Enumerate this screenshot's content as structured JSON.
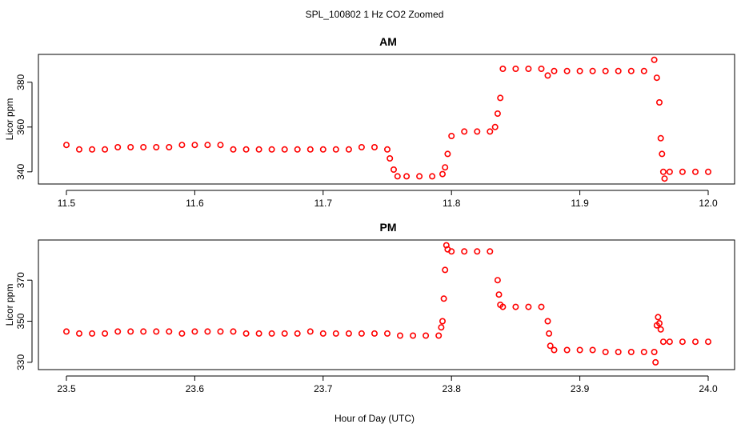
{
  "figure": {
    "title": "SPL_100802  1 Hz CO2 Zoomed",
    "xlabel": "Hour of Day (UTC)"
  },
  "chart_data": [
    {
      "type": "scatter",
      "title": "AM",
      "xlabel": "",
      "ylabel": "Licor ppm",
      "xlim": [
        11.5,
        12.0
      ],
      "ylim": [
        336,
        391
      ],
      "xticks": [
        11.5,
        11.6,
        11.7,
        11.8,
        11.9,
        12.0
      ],
      "xtick_labels": [
        "11.5",
        "11.6",
        "11.7",
        "11.8",
        "11.9",
        "12.0"
      ],
      "yticks": [
        340,
        360,
        380
      ],
      "ytick_labels": [
        "340",
        "360",
        "380"
      ],
      "grid": false,
      "marker_color": "#ff0000",
      "series": [
        {
          "x": [
            11.5,
            11.51,
            11.52,
            11.53,
            11.54,
            11.55,
            11.56,
            11.57,
            11.58,
            11.59,
            11.6,
            11.61,
            11.62,
            11.63,
            11.64,
            11.65,
            11.66,
            11.67,
            11.68,
            11.69,
            11.7,
            11.71,
            11.72,
            11.73,
            11.74,
            11.75,
            11.752,
            11.755,
            11.758,
            11.765,
            11.775,
            11.785,
            11.793,
            11.795,
            11.797,
            11.8,
            11.81,
            11.82,
            11.83,
            11.834,
            11.836,
            11.838,
            11.84,
            11.85,
            11.86,
            11.87,
            11.875,
            11.88,
            11.89,
            11.9,
            11.91,
            11.92,
            11.93,
            11.94,
            11.95,
            11.958,
            11.96,
            11.962,
            11.963,
            11.964,
            11.965,
            11.966,
            11.97,
            11.98,
            11.99,
            12.0
          ],
          "y": [
            352,
            350,
            350,
            350,
            351,
            351,
            351,
            351,
            351,
            352,
            352,
            352,
            352,
            350,
            350,
            350,
            350,
            350,
            350,
            350,
            350,
            350,
            350,
            351,
            351,
            350,
            346,
            341,
            338,
            338,
            338,
            338,
            339,
            342,
            348,
            356,
            358,
            358,
            358,
            360,
            366,
            373,
            386,
            386,
            386,
            386,
            383,
            385,
            385,
            385,
            385,
            385,
            385,
            385,
            385,
            390,
            382,
            371,
            355,
            348,
            340,
            337,
            340,
            340,
            340,
            340
          ]
        }
      ]
    },
    {
      "type": "scatter",
      "title": "PM",
      "xlabel": "Hour of Day (UTC)",
      "ylabel": "Licor ppm",
      "xlim": [
        23.5,
        24.0
      ],
      "ylim": [
        328,
        388
      ],
      "xticks": [
        23.5,
        23.6,
        23.7,
        23.8,
        23.9,
        24.0
      ],
      "xtick_labels": [
        "23.5",
        "23.6",
        "23.7",
        "23.8",
        "23.9",
        "24.0"
      ],
      "yticks": [
        330,
        350,
        370
      ],
      "ytick_labels": [
        "330",
        "350",
        "370"
      ],
      "grid": false,
      "marker_color": "#ff0000",
      "series": [
        {
          "x": [
            23.5,
            23.51,
            23.52,
            23.53,
            23.54,
            23.55,
            23.56,
            23.57,
            23.58,
            23.59,
            23.6,
            23.61,
            23.62,
            23.63,
            23.64,
            23.65,
            23.66,
            23.67,
            23.68,
            23.69,
            23.7,
            23.71,
            23.72,
            23.73,
            23.74,
            23.75,
            23.76,
            23.77,
            23.78,
            23.79,
            23.792,
            23.793,
            23.794,
            23.795,
            23.796,
            23.797,
            23.8,
            23.81,
            23.82,
            23.83,
            23.836,
            23.837,
            23.838,
            23.84,
            23.85,
            23.86,
            23.87,
            23.875,
            23.876,
            23.877,
            23.88,
            23.89,
            23.9,
            23.91,
            23.92,
            23.93,
            23.94,
            23.95,
            23.958,
            23.959,
            23.96,
            23.961,
            23.962,
            23.963,
            23.965,
            23.97,
            23.98,
            23.99,
            24.0
          ],
          "y": [
            345,
            344,
            344,
            344,
            345,
            345,
            345,
            345,
            345,
            344,
            345,
            345,
            345,
            345,
            344,
            344,
            344,
            344,
            344,
            345,
            344,
            344,
            344,
            344,
            344,
            344,
            343,
            343,
            343,
            343,
            347,
            350,
            361,
            375,
            387,
            385,
            384,
            384,
            384,
            384,
            370,
            363,
            358,
            357,
            357,
            357,
            357,
            350,
            344,
            338,
            336,
            336,
            336,
            336,
            335,
            335,
            335,
            335,
            335,
            330,
            348,
            352,
            349,
            346,
            340,
            340,
            340,
            340,
            340
          ]
        }
      ]
    }
  ]
}
